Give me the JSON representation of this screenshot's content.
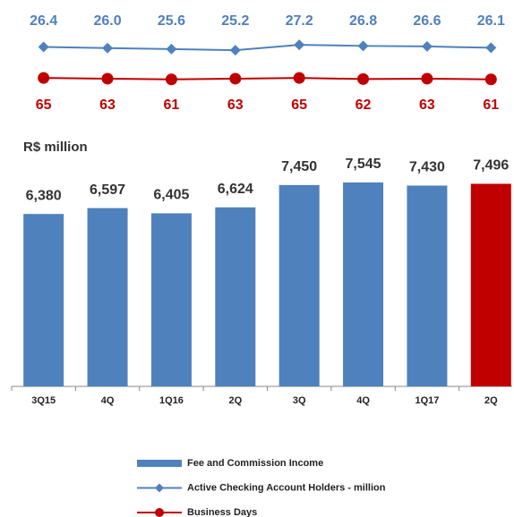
{
  "chart_data": {
    "type": "bar",
    "y_label": "R$ million",
    "categories": [
      "3Q15",
      "4Q",
      "1Q16",
      "2Q",
      "3Q",
      "4Q",
      "1Q17",
      "2Q"
    ],
    "series": [
      {
        "name": "Fee and Commission Income",
        "type": "bar",
        "color": "#4f81bd",
        "colors": [
          "#4f81bd",
          "#4f81bd",
          "#4f81bd",
          "#4f81bd",
          "#4f81bd",
          "#4f81bd",
          "#4f81bd",
          "#c00000"
        ],
        "values": [
          6380,
          6597,
          6405,
          6624,
          7450,
          7545,
          7430,
          7496
        ],
        "value_labels": [
          "6,380",
          "6,597",
          "6,405",
          "6,624",
          "7,450",
          "7,545",
          "7,430",
          "7,496"
        ]
      },
      {
        "name": "Active Checking Account Holders - million",
        "type": "line",
        "marker": "diamond",
        "color": "#4f81bd",
        "values": [
          26.4,
          26.0,
          25.6,
          25.2,
          27.2,
          26.8,
          26.6,
          26.1
        ],
        "value_labels": [
          "26.4",
          "26.0",
          "25.6",
          "25.2",
          "27.2",
          "26.8",
          "26.6",
          "26.1"
        ]
      },
      {
        "name": "Business Days",
        "type": "line",
        "marker": "circle",
        "color": "#c00000",
        "values": [
          65,
          63,
          61,
          63,
          65,
          62,
          63,
          61
        ]
      }
    ]
  }
}
